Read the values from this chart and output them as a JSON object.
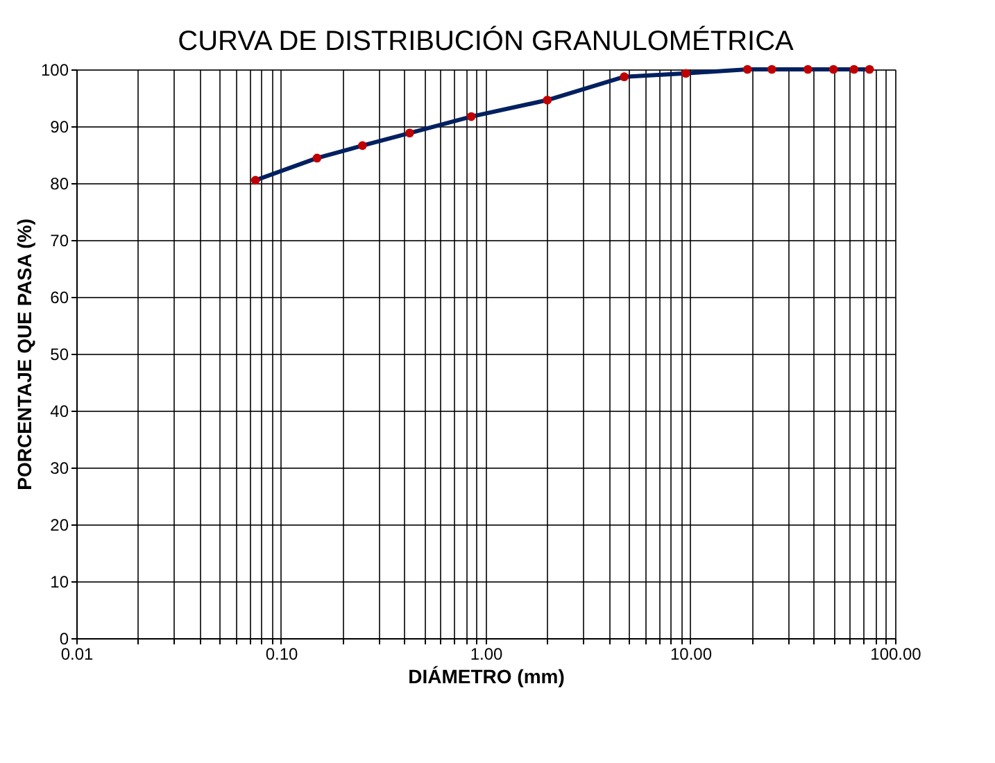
{
  "chart_data": {
    "type": "line",
    "title": "CURVA DE DISTRIBUCIÓN GRANULOMÉTRICA",
    "xlabel": "DIÁMETRO (mm)",
    "ylabel": "PORCENTAJE QUE PASA (%)",
    "x": [
      75,
      63,
      50,
      37.5,
      25,
      19,
      9.5,
      4.75,
      2.0,
      0.85,
      0.425,
      0.25,
      0.15,
      0.075
    ],
    "series": [
      {
        "color": "#002060",
        "colors": [
          "#c00000",
          "#c00000",
          "#c00000",
          "#c00000",
          "#c00000",
          "#c00000",
          "#c00000",
          "#c00000",
          "#c00000",
          "#c00000",
          "#c00000",
          "#c00000",
          "#c00000",
          "#c00000"
        ],
        "values": [
          100,
          100,
          100,
          100,
          100,
          100,
          99.3,
          98.7,
          94.6,
          91.7,
          88.8,
          86.6,
          84.4,
          80.5
        ]
      }
    ],
    "log": "x",
    "xlim": [
      0.01,
      100
    ],
    "ylim": [
      0,
      100
    ],
    "xticks": [
      {
        "value": 0.01,
        "label": "0.01"
      },
      {
        "value": 0.02,
        "label": null
      },
      {
        "value": 0.03,
        "label": null
      },
      {
        "value": 0.04,
        "label": null
      },
      {
        "value": 0.05,
        "label": null
      },
      {
        "value": 0.06,
        "label": null
      },
      {
        "value": 0.07,
        "label": null
      },
      {
        "value": 0.08,
        "label": null
      },
      {
        "value": 0.09,
        "label": null
      },
      {
        "value": 0.1,
        "label": "0.10"
      },
      {
        "value": 0.2,
        "label": null
      },
      {
        "value": 0.3,
        "label": null
      },
      {
        "value": 0.4,
        "label": null
      },
      {
        "value": 0.5,
        "label": null
      },
      {
        "value": 0.6,
        "label": null
      },
      {
        "value": 0.7,
        "label": null
      },
      {
        "value": 0.8,
        "label": null
      },
      {
        "value": 0.9,
        "label": null
      },
      {
        "value": 1,
        "label": "1.00"
      },
      {
        "value": 2,
        "label": null
      },
      {
        "value": 3,
        "label": null
      },
      {
        "value": 4,
        "label": null
      },
      {
        "value": 5,
        "label": null
      },
      {
        "value": 6,
        "label": null
      },
      {
        "value": 7,
        "label": null
      },
      {
        "value": 8,
        "label": null
      },
      {
        "value": 9,
        "label": null
      },
      {
        "value": 10,
        "label": "10.00"
      },
      {
        "value": 20,
        "label": null
      },
      {
        "value": 30,
        "label": null
      },
      {
        "value": 40,
        "label": null
      },
      {
        "value": 50,
        "label": null
      },
      {
        "value": 60,
        "label": null
      },
      {
        "value": 70,
        "label": null
      },
      {
        "value": 80,
        "label": null
      },
      {
        "value": 90,
        "label": null
      },
      {
        "value": 100,
        "label": "100.00"
      }
    ],
    "yticks": [
      0,
      10,
      20,
      30,
      40,
      50,
      60,
      70,
      80,
      90,
      100
    ],
    "grid": true,
    "marker": "circle",
    "line_style": "solid"
  }
}
